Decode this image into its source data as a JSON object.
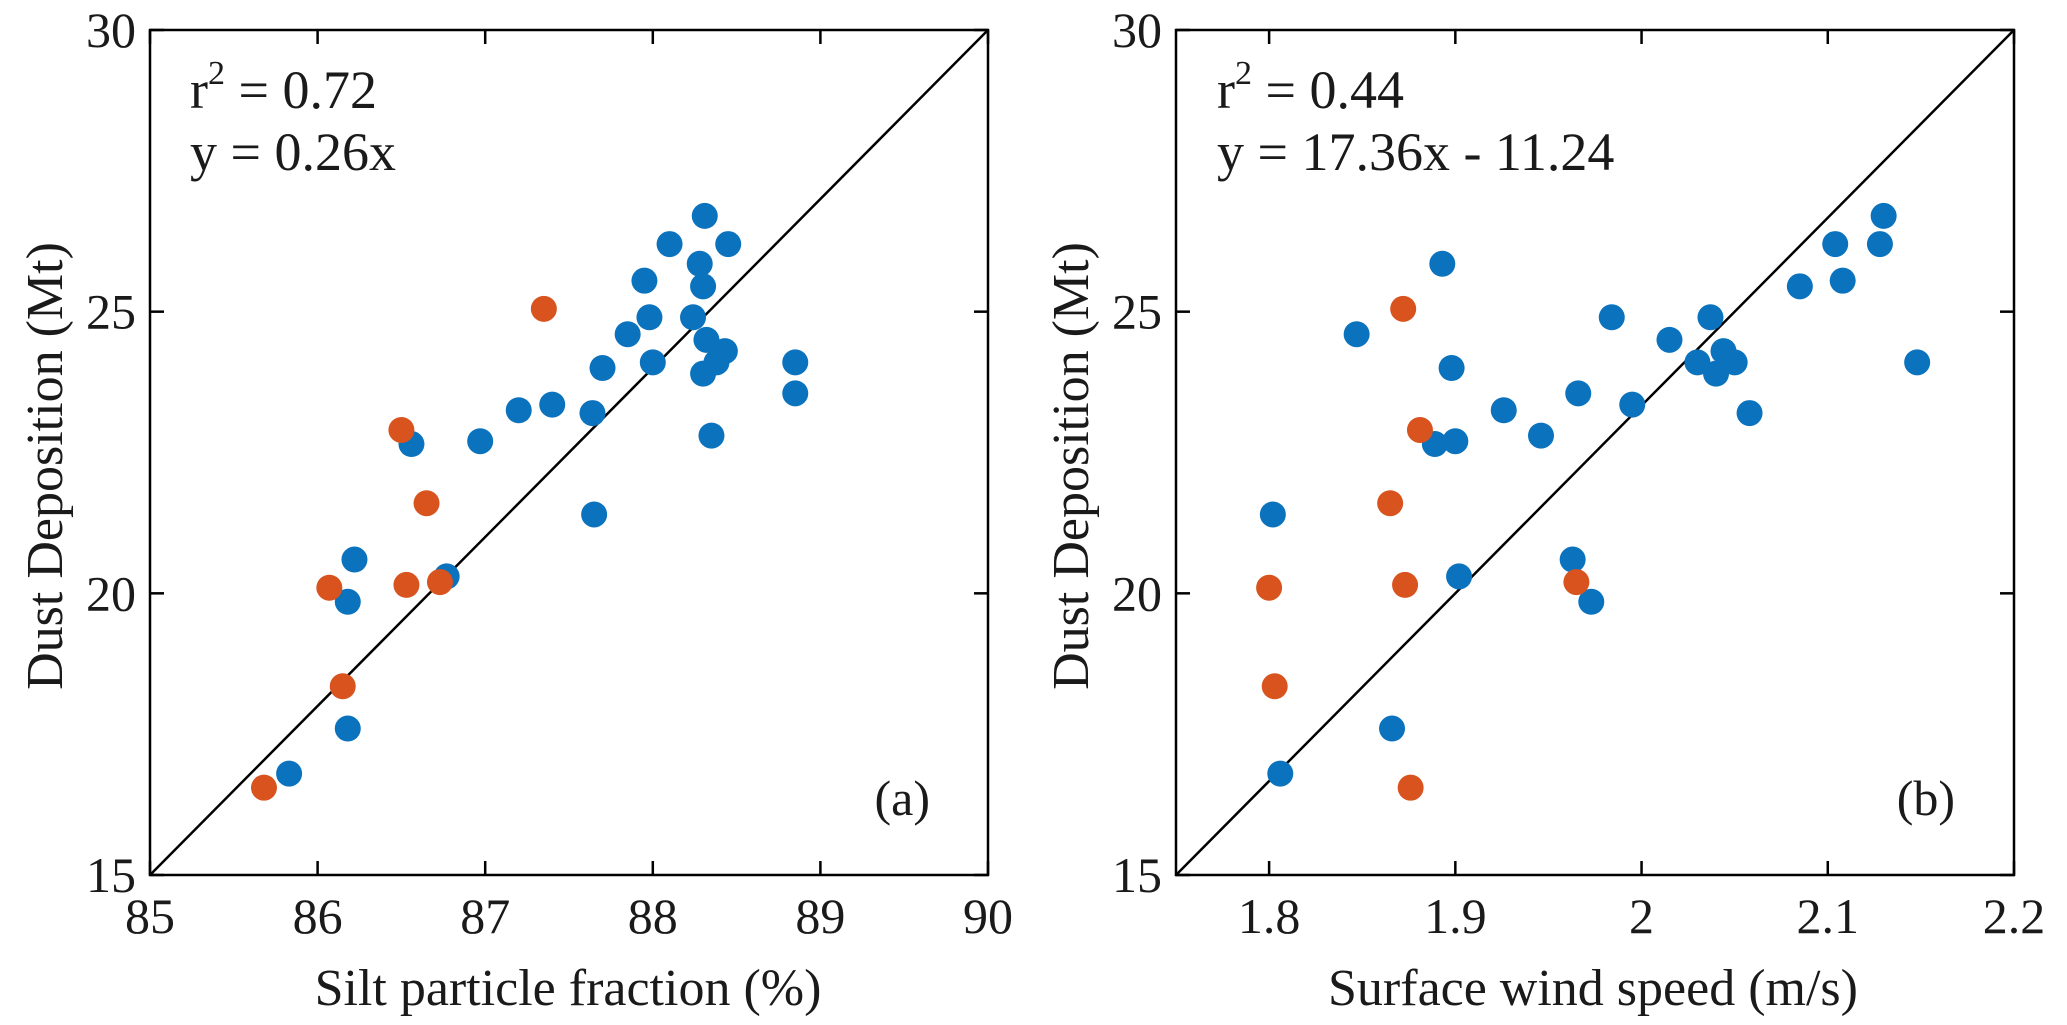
{
  "colors": {
    "blue": "#0b72bd",
    "orange": "#d9531e",
    "axis": "#000000"
  },
  "chart_data": [
    {
      "type": "scatter",
      "panel_label": "(a)",
      "xlabel": "Silt particle fraction (%)",
      "ylabel": "Dust Deposition (Mt)",
      "xlim": [
        85,
        90
      ],
      "ylim": [
        15,
        30
      ],
      "x_ticks": [
        85,
        86,
        87,
        88,
        89,
        90
      ],
      "x_tick_labels": [
        "85",
        "86",
        "87",
        "88",
        "89",
        "90"
      ],
      "y_ticks": [
        15,
        20,
        25,
        30
      ],
      "y_tick_labels": [
        "15",
        "20",
        "25",
        "30"
      ],
      "grid": false,
      "stats": {
        "r2_prefix": "r",
        "r2_exp": "2",
        "r2_value": " = 0.72",
        "equation": "y = 0.26x"
      },
      "reference_line": {
        "x": [
          85,
          90
        ],
        "y": [
          15,
          30
        ]
      },
      "series": [
        {
          "color": "blue",
          "points": [
            [
              85.83,
              16.8
            ],
            [
              86.18,
              17.6
            ],
            [
              86.18,
              19.85
            ],
            [
              86.22,
              20.6
            ],
            [
              86.56,
              22.65
            ],
            [
              86.77,
              20.3
            ],
            [
              86.97,
              22.7
            ],
            [
              87.2,
              23.25
            ],
            [
              87.4,
              23.35
            ],
            [
              87.64,
              23.2
            ],
            [
              87.65,
              21.4
            ],
            [
              87.7,
              24.0
            ],
            [
              87.85,
              24.6
            ],
            [
              87.95,
              25.55
            ],
            [
              87.98,
              24.9
            ],
            [
              88.0,
              24.1
            ],
            [
              88.1,
              26.2
            ],
            [
              88.24,
              24.9
            ],
            [
              88.28,
              25.85
            ],
            [
              88.3,
              25.45
            ],
            [
              88.3,
              23.9
            ],
            [
              88.31,
              26.7
            ],
            [
              88.32,
              24.5
            ],
            [
              88.35,
              22.8
            ],
            [
              88.38,
              24.1
            ],
            [
              88.43,
              24.3
            ],
            [
              88.45,
              26.2
            ],
            [
              88.85,
              24.1
            ],
            [
              88.85,
              23.55
            ]
          ]
        },
        {
          "color": "orange",
          "points": [
            [
              85.68,
              16.55
            ],
            [
              86.07,
              20.1
            ],
            [
              86.15,
              18.35
            ],
            [
              86.5,
              22.9
            ],
            [
              86.53,
              20.15
            ],
            [
              86.65,
              21.6
            ],
            [
              86.73,
              20.2
            ],
            [
              87.35,
              25.05
            ]
          ]
        }
      ]
    },
    {
      "type": "scatter",
      "panel_label": "(b)",
      "xlabel": "Surface wind speed (m/s)",
      "ylabel": "Dust Deposition (Mt)",
      "xlim": [
        1.75,
        2.2
      ],
      "ylim": [
        15,
        30
      ],
      "x_ticks": [
        1.8,
        1.9,
        2.0,
        2.1,
        2.2
      ],
      "x_tick_labels": [
        "1.8",
        "1.9",
        "2",
        "2.1",
        "2.2"
      ],
      "y_ticks": [
        15,
        20,
        25,
        30
      ],
      "y_tick_labels": [
        "15",
        "20",
        "25",
        "30"
      ],
      "grid": false,
      "stats": {
        "r2_prefix": "r",
        "r2_exp": "2",
        "r2_value": " = 0.44",
        "equation": "y = 17.36x - 11.24"
      },
      "reference_line": {
        "x": [
          1.75,
          2.2
        ],
        "y": [
          15,
          30
        ]
      },
      "series": [
        {
          "color": "blue",
          "points": [
            [
              1.802,
              21.4
            ],
            [
              1.806,
              16.8
            ],
            [
              1.847,
              24.6
            ],
            [
              1.866,
              17.6
            ],
            [
              1.889,
              22.65
            ],
            [
              1.893,
              25.85
            ],
            [
              1.898,
              24.0
            ],
            [
              1.9,
              22.7
            ],
            [
              1.902,
              20.3
            ],
            [
              1.926,
              23.25
            ],
            [
              1.946,
              22.8
            ],
            [
              1.963,
              20.6
            ],
            [
              1.966,
              23.55
            ],
            [
              1.973,
              19.85
            ],
            [
              1.984,
              24.9
            ],
            [
              1.995,
              23.35
            ],
            [
              2.015,
              24.5
            ],
            [
              2.03,
              24.1
            ],
            [
              2.037,
              24.9
            ],
            [
              2.04,
              23.9
            ],
            [
              2.044,
              24.3
            ],
            [
              2.05,
              24.1
            ],
            [
              2.058,
              23.2
            ],
            [
              2.085,
              25.45
            ],
            [
              2.104,
              26.2
            ],
            [
              2.108,
              25.55
            ],
            [
              2.128,
              26.2
            ],
            [
              2.13,
              26.7
            ],
            [
              2.148,
              24.1
            ]
          ]
        },
        {
          "color": "orange",
          "points": [
            [
              1.8,
              20.1
            ],
            [
              1.803,
              18.35
            ],
            [
              1.865,
              21.6
            ],
            [
              1.872,
              25.05
            ],
            [
              1.873,
              20.15
            ],
            [
              1.876,
              16.55
            ],
            [
              1.881,
              22.9
            ],
            [
              1.965,
              20.2
            ]
          ]
        }
      ]
    }
  ]
}
